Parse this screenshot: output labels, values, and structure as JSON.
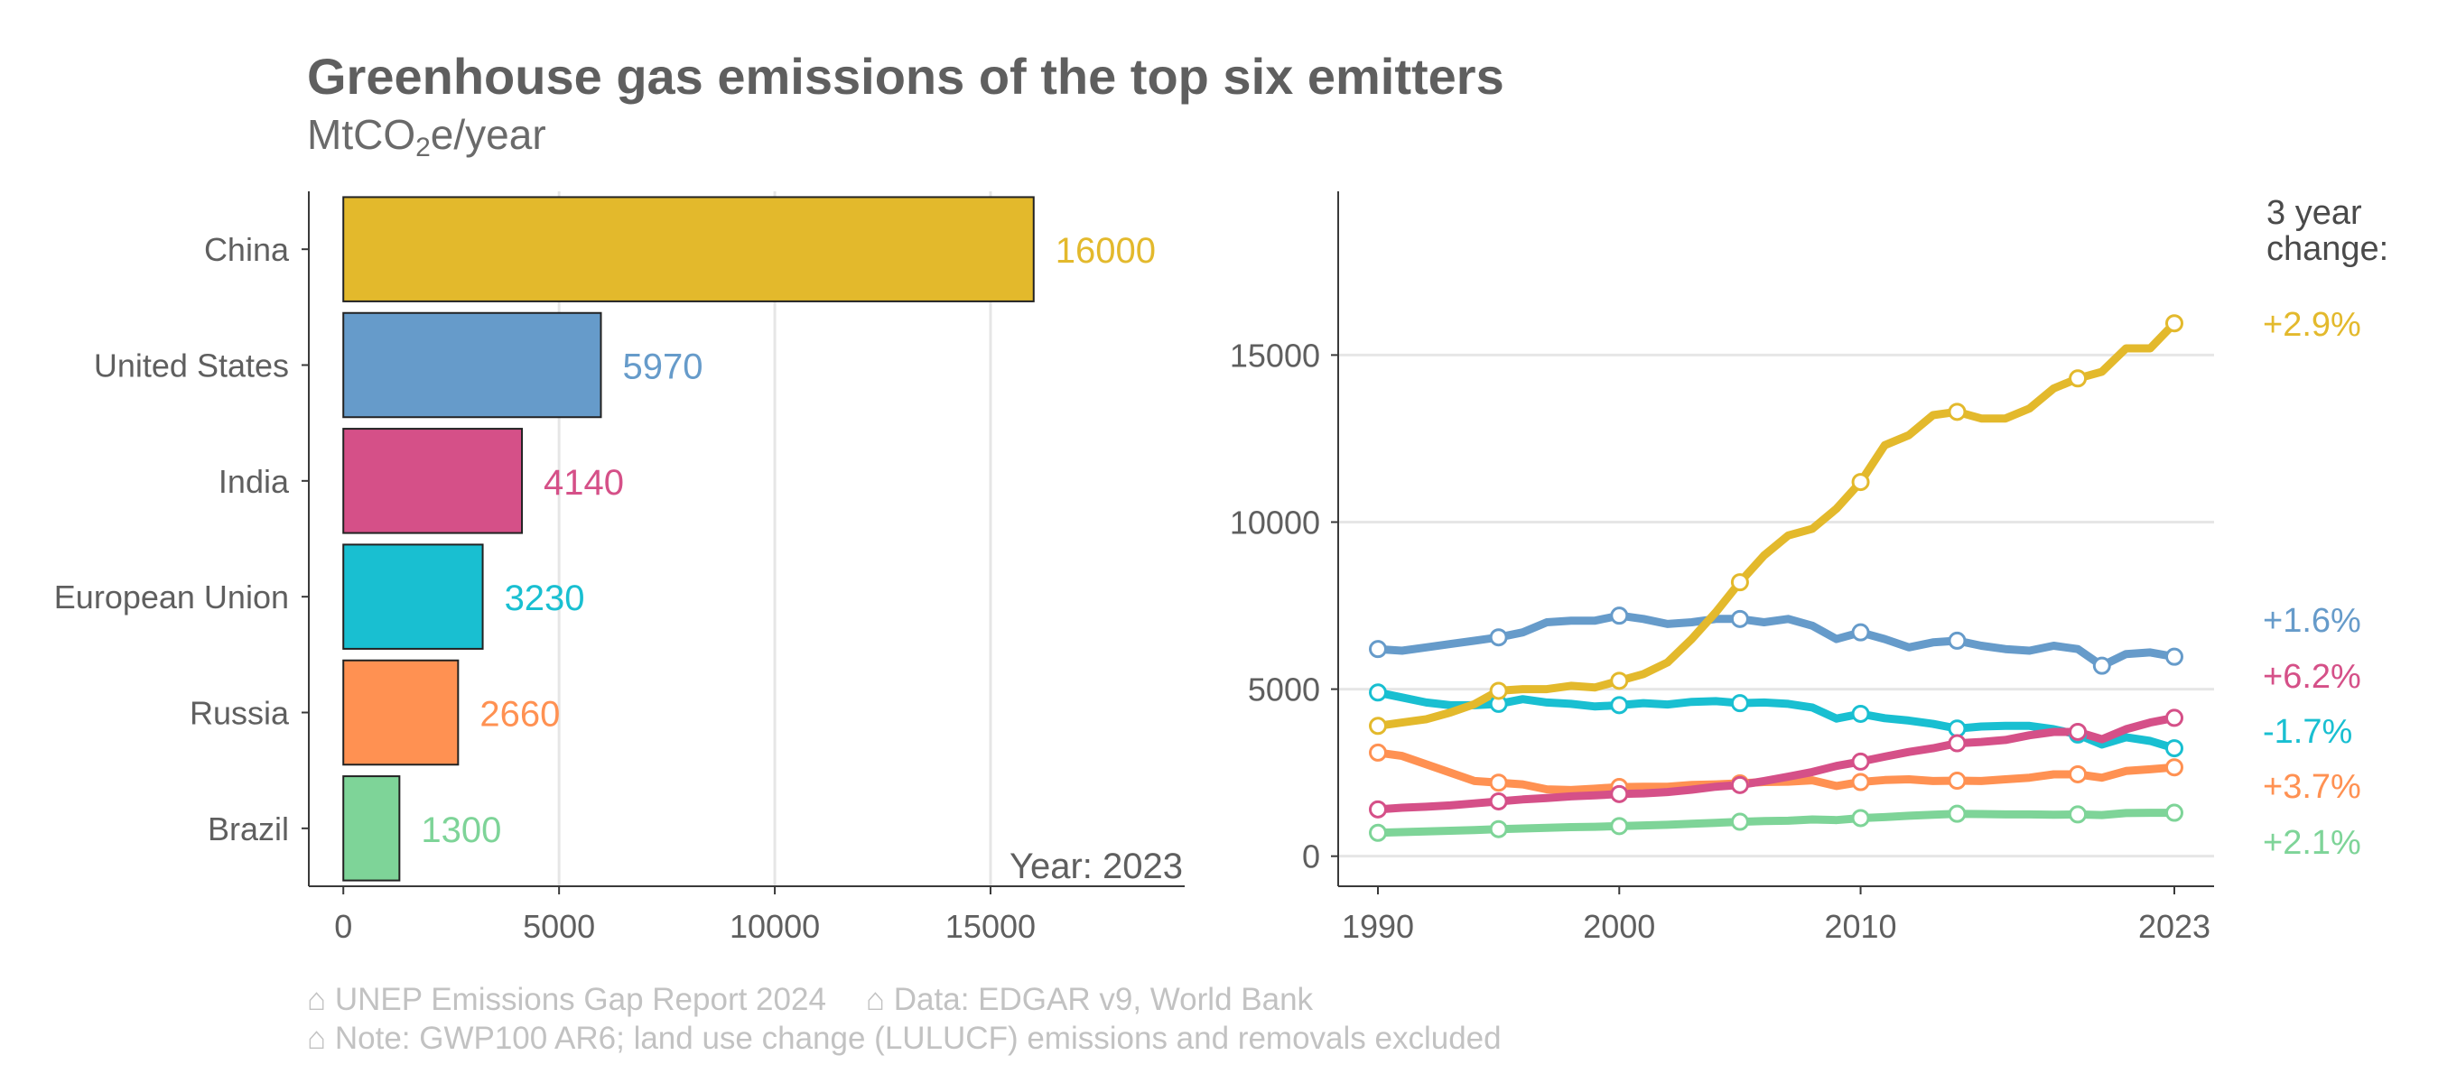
{
  "title": "Greenhouse gas emissions of the top six emitters",
  "subtitle": {
    "main": "MtCO",
    "sub": "2",
    "rest": "e/year"
  },
  "captions": {
    "source": "⌂ UNEP Emissions Gap Report 2024",
    "data": "⌂ Data: EDGAR v9, World Bank",
    "note": "⌂ Note: GWP100 AR6; land use change (LULUCF) emissions and removals excluded"
  },
  "colors": {
    "China": "#E3B92C",
    "United States": "#669BCA",
    "India": "#D55088",
    "European Union": "#19BFD1",
    "Russia": "#FF9152",
    "Brazil": "#7ED498",
    "text": "#5f5f5f",
    "grid": "#e6e6e6"
  },
  "chart_data": [
    {
      "type": "bar",
      "orientation": "horizontal",
      "categories": [
        "China",
        "United States",
        "India",
        "European Union",
        "Russia",
        "Brazil"
      ],
      "values": [
        16000,
        5970,
        4140,
        3230,
        2660,
        1300
      ],
      "value_labels": [
        "16000",
        "5970",
        "4140",
        "3230",
        "2660",
        "1300"
      ],
      "xticks": [
        0,
        5000,
        10000,
        15000
      ],
      "xlim": [
        -800,
        19500
      ],
      "annotation": "Year: 2023",
      "grid": "vertical"
    },
    {
      "type": "line",
      "x_range": [
        1990,
        2023
      ],
      "xticks": [
        1990,
        2000,
        2010,
        2023
      ],
      "yticks": [
        0,
        5000,
        10000,
        15000
      ],
      "ylim": [
        -900,
        19900
      ],
      "grid": "horizontal",
      "legend_title": "3 year change:",
      "change_labels": [
        {
          "label": "+2.9%",
          "series": "China",
          "rank": 0
        },
        {
          "label": "+1.6%",
          "series": "United States",
          "rank": 1
        },
        {
          "label": "+6.2%",
          "series": "India",
          "rank": 2
        },
        {
          "label": "-1.7%",
          "series": "European Union",
          "rank": 3
        },
        {
          "label": "+3.7%",
          "series": "Russia",
          "rank": 4
        },
        {
          "label": "+2.1%",
          "series": "Brazil",
          "rank": 5
        }
      ],
      "series": [
        {
          "name": "China",
          "x": [
            1990,
            1991,
            1992,
            1993,
            1994,
            1995,
            1996,
            1997,
            1998,
            1999,
            2000,
            2001,
            2002,
            2003,
            2004,
            2005,
            2006,
            2007,
            2008,
            2009,
            2010,
            2011,
            2012,
            2013,
            2014,
            2015,
            2016,
            2017,
            2018,
            2019,
            2020,
            2021,
            2022,
            2023
          ],
          "y": [
            3900,
            4000,
            4100,
            4300,
            4550,
            4950,
            5000,
            5000,
            5100,
            5050,
            5250,
            5450,
            5800,
            6500,
            7300,
            8200,
            9000,
            9600,
            9800,
            10400,
            11200,
            12300,
            12600,
            13200,
            13300,
            13100,
            13100,
            13400,
            14000,
            14300,
            14500,
            15200,
            15200,
            15950
          ],
          "markers": [
            1990,
            1995,
            2000,
            2005,
            2010,
            2014,
            2019,
            2023
          ]
        },
        {
          "name": "United States",
          "x": [
            1990,
            1991,
            1992,
            1993,
            1994,
            1995,
            1996,
            1997,
            1998,
            1999,
            2000,
            2001,
            2002,
            2003,
            2004,
            2005,
            2006,
            2007,
            2008,
            2009,
            2010,
            2011,
            2012,
            2013,
            2014,
            2015,
            2016,
            2017,
            2018,
            2019,
            2020,
            2021,
            2022,
            2023
          ],
          "y": [
            6200,
            6150,
            6250,
            6350,
            6450,
            6550,
            6700,
            7000,
            7050,
            7050,
            7200,
            7100,
            6950,
            7000,
            7100,
            7100,
            7000,
            7100,
            6900,
            6500,
            6700,
            6500,
            6250,
            6400,
            6450,
            6300,
            6200,
            6150,
            6300,
            6200,
            5700,
            6050,
            6100,
            5970
          ],
          "markers": [
            1990,
            1995,
            2000,
            2005,
            2010,
            2014,
            2020,
            2023
          ]
        },
        {
          "name": "India",
          "x": [
            1990,
            1991,
            1992,
            1993,
            1994,
            1995,
            1996,
            1997,
            1998,
            1999,
            2000,
            2001,
            2002,
            2003,
            2004,
            2005,
            2006,
            2007,
            2008,
            2009,
            2010,
            2011,
            2012,
            2013,
            2014,
            2015,
            2016,
            2017,
            2018,
            2019,
            2020,
            2021,
            2022,
            2023
          ],
          "y": [
            1400,
            1450,
            1480,
            1520,
            1580,
            1640,
            1700,
            1740,
            1790,
            1820,
            1860,
            1880,
            1920,
            1990,
            2080,
            2130,
            2250,
            2380,
            2520,
            2700,
            2830,
            2980,
            3120,
            3230,
            3380,
            3420,
            3480,
            3620,
            3720,
            3720,
            3500,
            3800,
            4000,
            4140
          ],
          "markers": [
            1990,
            1995,
            2000,
            2005,
            2010,
            2014,
            2019,
            2023
          ]
        },
        {
          "name": "European Union",
          "x": [
            1990,
            1991,
            1992,
            1993,
            1994,
            1995,
            1996,
            1997,
            1998,
            1999,
            2000,
            2001,
            2002,
            2003,
            2004,
            2005,
            2006,
            2007,
            2008,
            2009,
            2010,
            2011,
            2012,
            2013,
            2014,
            2015,
            2016,
            2017,
            2018,
            2019,
            2020,
            2021,
            2022,
            2023
          ],
          "y": [
            4900,
            4750,
            4600,
            4520,
            4520,
            4560,
            4700,
            4600,
            4560,
            4480,
            4520,
            4580,
            4540,
            4620,
            4640,
            4580,
            4600,
            4560,
            4450,
            4120,
            4260,
            4130,
            4060,
            3960,
            3820,
            3880,
            3900,
            3900,
            3800,
            3640,
            3340,
            3560,
            3450,
            3230
          ],
          "markers": [
            1990,
            1995,
            2000,
            2005,
            2010,
            2014,
            2019,
            2023
          ]
        },
        {
          "name": "Russia",
          "x": [
            1990,
            1991,
            1992,
            1993,
            1994,
            1995,
            1996,
            1997,
            1998,
            1999,
            2000,
            2001,
            2002,
            2003,
            2004,
            2005,
            2006,
            2007,
            2008,
            2009,
            2010,
            2011,
            2012,
            2013,
            2014,
            2015,
            2016,
            2017,
            2018,
            2019,
            2020,
            2021,
            2022,
            2023
          ],
          "y": [
            3100,
            3000,
            2750,
            2500,
            2250,
            2200,
            2150,
            2000,
            1980,
            2020,
            2070,
            2080,
            2080,
            2130,
            2150,
            2180,
            2220,
            2230,
            2270,
            2100,
            2220,
            2280,
            2300,
            2250,
            2260,
            2250,
            2300,
            2350,
            2450,
            2450,
            2350,
            2550,
            2600,
            2660
          ],
          "markers": [
            1990,
            1995,
            2000,
            2005,
            2010,
            2014,
            2019,
            2023
          ]
        },
        {
          "name": "Brazil",
          "x": [
            1990,
            1991,
            1992,
            1993,
            1994,
            1995,
            1996,
            1997,
            1998,
            1999,
            2000,
            2001,
            2002,
            2003,
            2004,
            2005,
            2006,
            2007,
            2008,
            2009,
            2010,
            2011,
            2012,
            2013,
            2014,
            2015,
            2016,
            2017,
            2018,
            2019,
            2020,
            2021,
            2022,
            2023
          ],
          "y": [
            700,
            720,
            740,
            760,
            780,
            810,
            830,
            850,
            870,
            880,
            900,
            920,
            940,
            970,
            1000,
            1030,
            1050,
            1060,
            1100,
            1080,
            1140,
            1170,
            1210,
            1240,
            1270,
            1260,
            1250,
            1250,
            1240,
            1250,
            1230,
            1290,
            1300,
            1300
          ],
          "markers": [
            1990,
            1995,
            2000,
            2005,
            2010,
            2014,
            2019,
            2023
          ]
        }
      ]
    }
  ]
}
